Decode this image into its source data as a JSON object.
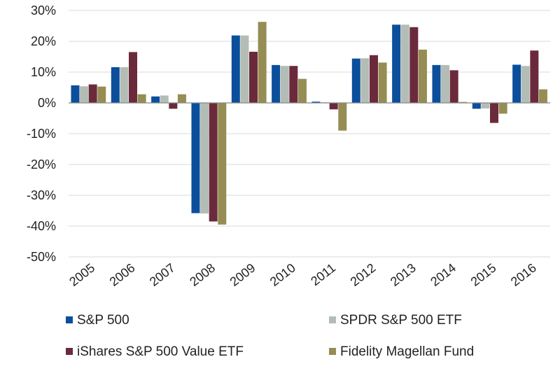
{
  "chart_data": {
    "type": "bar",
    "categories": [
      "2005",
      "2006",
      "2007",
      "2008",
      "2009",
      "2010",
      "2011",
      "2012",
      "2013",
      "2014",
      "2015",
      "2016"
    ],
    "series": [
      {
        "name": "S&P 500",
        "color": "#0b4f9c",
        "values": [
          5.7,
          11.6,
          2.1,
          -35.8,
          21.9,
          12.3,
          0.4,
          14.4,
          25.4,
          12.3,
          -1.9,
          12.4
        ]
      },
      {
        "name": "SPDR S&P 500 ETF",
        "color": "#b3bdb6",
        "values": [
          5.4,
          11.6,
          2.4,
          -35.9,
          21.9,
          12.0,
          0.2,
          14.5,
          25.4,
          12.3,
          -1.8,
          12.0
        ]
      },
      {
        "name": "iShares S&P 500 Value ETF",
        "color": "#6b2a3b",
        "values": [
          6.0,
          16.5,
          -1.9,
          -38.5,
          16.6,
          12.0,
          -2.1,
          15.5,
          24.6,
          10.6,
          -6.5,
          17.0
        ]
      },
      {
        "name": "Fidelity Magellan Fund",
        "color": "#958d54",
        "values": [
          5.3,
          2.8,
          2.8,
          -39.5,
          26.3,
          7.8,
          -9.0,
          13.1,
          17.3,
          0.3,
          -3.5,
          4.4
        ]
      }
    ],
    "yticks": [
      "30%",
      "20%",
      "10%",
      "0%",
      "-10%",
      "-20%",
      "-30%",
      "-40%",
      "-50%"
    ],
    "ylim": [
      -50,
      30
    ],
    "title": "",
    "xlabel": "",
    "ylabel": "",
    "grid": true,
    "legend_position": "bottom"
  }
}
